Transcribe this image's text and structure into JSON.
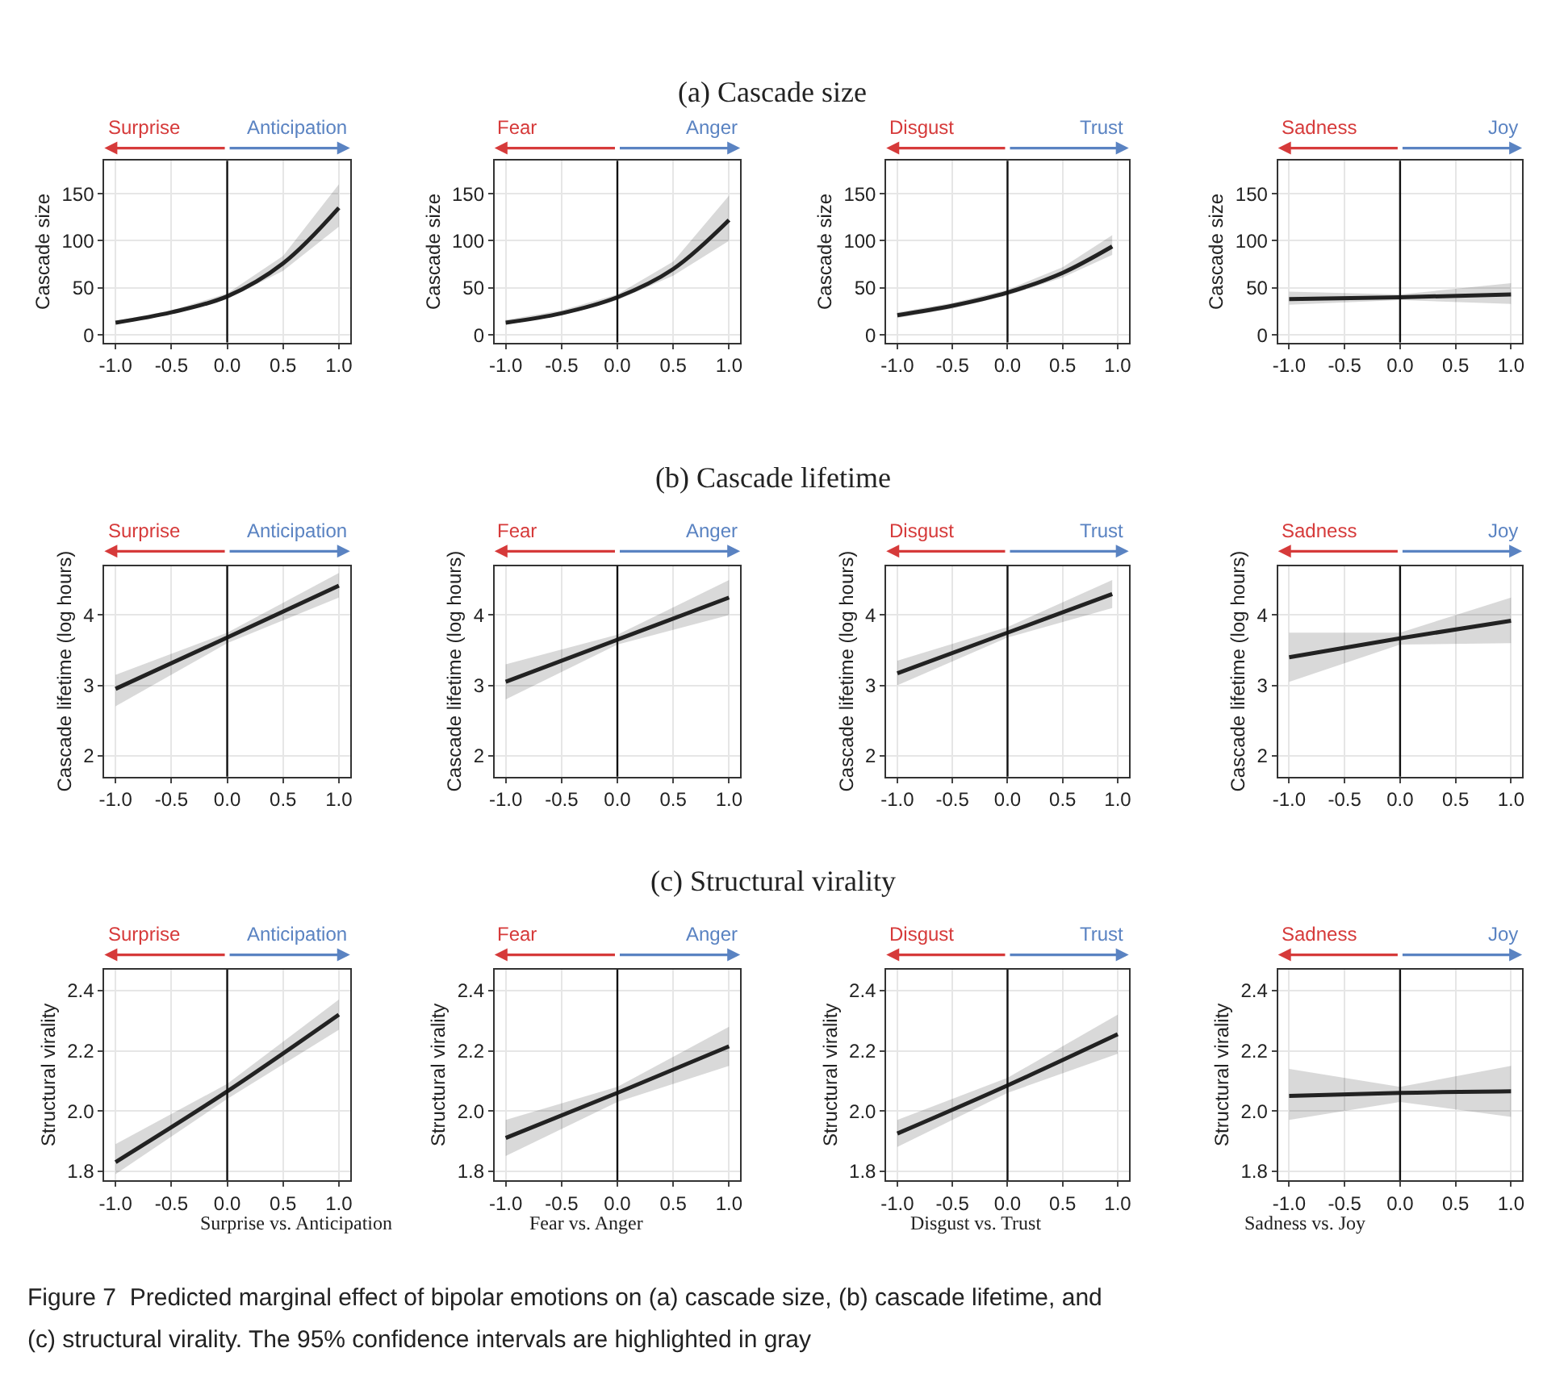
{
  "chart_data": [
    {
      "type": "other",
      "title": "(a) Cascade size"
    },
    {
      "type": "line",
      "ylabel": "Cascade size",
      "annotations": [
        "Surprise",
        "Anticipation"
      ],
      "x": [
        -1,
        -0.5,
        0,
        0.5,
        1
      ],
      "series": [
        {
          "color": "#222222",
          "values": [
            13,
            24,
            41,
            76,
            135
          ],
          "lower": [
            11,
            22,
            38,
            68,
            115
          ],
          "upper": [
            15,
            26,
            44,
            84,
            160
          ]
        }
      ],
      "xlim": [
        -1.1,
        1.1
      ],
      "ylim": [
        -8,
        185
      ],
      "xticks": [
        {
          "value": -1,
          "label": "-1.0"
        },
        {
          "value": -0.5,
          "label": "-0.5"
        },
        {
          "value": 0,
          "label": "0.0"
        },
        {
          "value": 0.5,
          "label": "0.5"
        },
        {
          "value": 1,
          "label": "1.0"
        }
      ],
      "yticks": [
        0,
        50,
        100,
        150
      ],
      "grid": true,
      "ref_lines": [
        {
          "axis": "x",
          "value": 0
        }
      ]
    },
    {
      "type": "line",
      "ylabel": "Cascade size",
      "annotations": [
        "Fear",
        "Anger"
      ],
      "x": [
        -1,
        -0.5,
        0,
        0.5,
        1
      ],
      "series": [
        {
          "color": "#222222",
          "values": [
            13,
            23,
            40,
            70,
            122
          ],
          "lower": [
            11,
            21,
            37,
            63,
            100
          ],
          "upper": [
            16,
            26,
            43,
            78,
            148
          ]
        }
      ],
      "xlim": [
        -1.1,
        1.1
      ],
      "ylim": [
        -8,
        185
      ],
      "xticks": [
        {
          "value": -1,
          "label": "-1.0"
        },
        {
          "value": -0.5,
          "label": "-0.5"
        },
        {
          "value": 0,
          "label": "0.0"
        },
        {
          "value": 0.5,
          "label": "0.5"
        },
        {
          "value": 1,
          "label": "1.0"
        }
      ],
      "yticks": [
        0,
        50,
        100,
        150
      ],
      "grid": true,
      "ref_lines": [
        {
          "axis": "x",
          "value": 0
        }
      ]
    },
    {
      "type": "line",
      "ylabel": "Cascade size",
      "annotations": [
        "Disgust",
        "Trust"
      ],
      "x": [
        -1,
        -0.5,
        0,
        0.5,
        0.95
      ],
      "series": [
        {
          "color": "#222222",
          "values": [
            21,
            31,
            45,
            66,
            94
          ],
          "lower": [
            18,
            28,
            42,
            61,
            85
          ],
          "upper": [
            24,
            34,
            48,
            72,
            106
          ]
        }
      ],
      "xlim": [
        -1.1,
        1.1
      ],
      "ylim": [
        -8,
        185
      ],
      "xticks": [
        {
          "value": -1,
          "label": "-1.0"
        },
        {
          "value": -0.5,
          "label": "-0.5"
        },
        {
          "value": 0,
          "label": "0.0"
        },
        {
          "value": 0.5,
          "label": "0.5"
        },
        {
          "value": 1,
          "label": "1.0"
        }
      ],
      "yticks": [
        0,
        50,
        100,
        150
      ],
      "grid": true,
      "ref_lines": [
        {
          "axis": "x",
          "value": 0
        }
      ]
    },
    {
      "type": "line",
      "ylabel": "Cascade size",
      "annotations": [
        "Sadness",
        "Joy"
      ],
      "x": [
        -1,
        0,
        1
      ],
      "series": [
        {
          "color": "#222222",
          "values": [
            38,
            40,
            43
          ],
          "lower": [
            32,
            37,
            33
          ],
          "upper": [
            46,
            43,
            55
          ]
        }
      ],
      "xlim": [
        -1.1,
        1.1
      ],
      "ylim": [
        -8,
        185
      ],
      "xticks": [
        {
          "value": -1,
          "label": "-1.0"
        },
        {
          "value": -0.5,
          "label": "-0.5"
        },
        {
          "value": 0,
          "label": "0.0"
        },
        {
          "value": 0.5,
          "label": "0.5"
        },
        {
          "value": 1,
          "label": "1.0"
        }
      ],
      "yticks": [
        0,
        50,
        100,
        150
      ],
      "grid": true,
      "ref_lines": [
        {
          "axis": "x",
          "value": 0
        }
      ]
    },
    {
      "type": "other",
      "title": "(b) Cascade lifetime"
    },
    {
      "type": "line",
      "ylabel": "Cascade lifetime (log hours)",
      "annotations": [
        "Surprise",
        "Anticipation"
      ],
      "x": [
        -1,
        0,
        1
      ],
      "series": [
        {
          "color": "#222222",
          "values": [
            2.95,
            3.68,
            4.42
          ],
          "lower": [
            2.7,
            3.6,
            4.25
          ],
          "upper": [
            3.15,
            3.75,
            4.6
          ]
        }
      ],
      "xlim": [
        -1.1,
        1.1
      ],
      "ylim": [
        1.7,
        4.7
      ],
      "xticks": [
        {
          "value": -1,
          "label": "-1.0"
        },
        {
          "value": -0.5,
          "label": "-0.5"
        },
        {
          "value": 0,
          "label": "0.0"
        },
        {
          "value": 0.5,
          "label": "0.5"
        },
        {
          "value": 1,
          "label": "1.0"
        }
      ],
      "yticks": [
        2,
        3,
        4
      ],
      "grid": true,
      "ref_lines": [
        {
          "axis": "x",
          "value": 0
        }
      ]
    },
    {
      "type": "line",
      "ylabel": "Cascade lifetime (log hours)",
      "annotations": [
        "Fear",
        "Anger"
      ],
      "x": [
        -1,
        0,
        1
      ],
      "series": [
        {
          "color": "#222222",
          "values": [
            3.05,
            3.65,
            4.25
          ],
          "lower": [
            2.8,
            3.58,
            4.0
          ],
          "upper": [
            3.3,
            3.72,
            4.5
          ]
        }
      ],
      "xlim": [
        -1.1,
        1.1
      ],
      "ylim": [
        1.7,
        4.7
      ],
      "xticks": [
        {
          "value": -1,
          "label": "-1.0"
        },
        {
          "value": -0.5,
          "label": "-0.5"
        },
        {
          "value": 0,
          "label": "0.0"
        },
        {
          "value": 0.5,
          "label": "0.5"
        },
        {
          "value": 1,
          "label": "1.0"
        }
      ],
      "yticks": [
        2,
        3,
        4
      ],
      "grid": true,
      "ref_lines": [
        {
          "axis": "x",
          "value": 0
        }
      ]
    },
    {
      "type": "line",
      "ylabel": "Cascade lifetime (log hours)",
      "annotations": [
        "Disgust",
        "Trust"
      ],
      "x": [
        -1,
        0,
        0.95
      ],
      "series": [
        {
          "color": "#222222",
          "values": [
            3.17,
            3.75,
            4.3
          ],
          "lower": [
            3.0,
            3.68,
            4.1
          ],
          "upper": [
            3.35,
            3.83,
            4.5
          ]
        }
      ],
      "xlim": [
        -1.1,
        1.1
      ],
      "ylim": [
        1.7,
        4.7
      ],
      "xticks": [
        {
          "value": -1,
          "label": "-1.0"
        },
        {
          "value": -0.5,
          "label": "-0.5"
        },
        {
          "value": 0,
          "label": "0.0"
        },
        {
          "value": 0.5,
          "label": "0.5"
        },
        {
          "value": 1,
          "label": "1.0"
        }
      ],
      "yticks": [
        2,
        3,
        4
      ],
      "grid": true,
      "ref_lines": [
        {
          "axis": "x",
          "value": 0
        }
      ]
    },
    {
      "type": "line",
      "ylabel": "Cascade lifetime (log hours)",
      "annotations": [
        "Sadness",
        "Joy"
      ],
      "x": [
        -1,
        0,
        1
      ],
      "series": [
        {
          "color": "#222222",
          "values": [
            3.4,
            3.67,
            3.92
          ],
          "lower": [
            3.05,
            3.58,
            3.6
          ],
          "upper": [
            3.75,
            3.75,
            4.25
          ]
        }
      ],
      "xlim": [
        -1.1,
        1.1
      ],
      "ylim": [
        1.7,
        4.7
      ],
      "xticks": [
        {
          "value": -1,
          "label": "-1.0"
        },
        {
          "value": -0.5,
          "label": "-0.5"
        },
        {
          "value": 0,
          "label": "0.0"
        },
        {
          "value": 0.5,
          "label": "0.5"
        },
        {
          "value": 1,
          "label": "1.0"
        }
      ],
      "yticks": [
        2,
        3,
        4
      ],
      "grid": true,
      "ref_lines": [
        {
          "axis": "x",
          "value": 0
        }
      ]
    },
    {
      "type": "other",
      "title": "(c) Structural virality"
    },
    {
      "type": "line",
      "ylabel": "Structural virality",
      "annotations": [
        "Surprise",
        "Anticipation",
        "Surprise vs. Anticipation"
      ],
      "x": [
        -1,
        0,
        1
      ],
      "series": [
        {
          "color": "#222222",
          "values": [
            1.83,
            2.065,
            2.32
          ],
          "lower": [
            1.79,
            2.04,
            2.27
          ],
          "upper": [
            1.89,
            2.09,
            2.37
          ]
        }
      ],
      "xlim": [
        -1.1,
        1.1
      ],
      "ylim": [
        1.77,
        2.47
      ],
      "xticks": [
        {
          "value": -1,
          "label": "-1.0"
        },
        {
          "value": -0.5,
          "label": "-0.5"
        },
        {
          "value": 0,
          "label": "0.0"
        },
        {
          "value": 0.5,
          "label": "0.5"
        },
        {
          "value": 1,
          "label": "1.0"
        }
      ],
      "yticks": [
        {
          "value": 1.8,
          "label": "1.8"
        },
        {
          "value": 2.0,
          "label": "2.0"
        },
        {
          "value": 2.2,
          "label": "2.2"
        },
        {
          "value": 2.4,
          "label": "2.4"
        }
      ],
      "grid": true,
      "ref_lines": [
        {
          "axis": "x",
          "value": 0
        }
      ]
    },
    {
      "type": "line",
      "ylabel": "Structural virality",
      "annotations": [
        "Fear",
        "Anger",
        "Fear vs. Anger"
      ],
      "x": [
        -1,
        0,
        1
      ],
      "series": [
        {
          "color": "#222222",
          "values": [
            1.91,
            2.06,
            2.215
          ],
          "lower": [
            1.85,
            2.03,
            2.15
          ],
          "upper": [
            1.97,
            2.08,
            2.28
          ]
        }
      ],
      "xlim": [
        -1.1,
        1.1
      ],
      "ylim": [
        1.77,
        2.47
      ],
      "xticks": [
        {
          "value": -1,
          "label": "-1.0"
        },
        {
          "value": -0.5,
          "label": "-0.5"
        },
        {
          "value": 0,
          "label": "0.0"
        },
        {
          "value": 0.5,
          "label": "0.5"
        },
        {
          "value": 1,
          "label": "1.0"
        }
      ],
      "yticks": [
        {
          "value": 1.8,
          "label": "1.8"
        },
        {
          "value": 2.0,
          "label": "2.0"
        },
        {
          "value": 2.2,
          "label": "2.2"
        },
        {
          "value": 2.4,
          "label": "2.4"
        }
      ],
      "grid": true,
      "ref_lines": [
        {
          "axis": "x",
          "value": 0
        }
      ]
    },
    {
      "type": "line",
      "ylabel": "Structural virality",
      "annotations": [
        "Disgust",
        "Trust",
        "Disgust vs. Trust"
      ],
      "x": [
        -1,
        0,
        1
      ],
      "series": [
        {
          "color": "#222222",
          "values": [
            1.925,
            2.085,
            2.255
          ],
          "lower": [
            1.88,
            2.06,
            2.19
          ],
          "upper": [
            1.97,
            2.11,
            2.32
          ]
        }
      ],
      "xlim": [
        -1.1,
        1.1
      ],
      "ylim": [
        1.77,
        2.47
      ],
      "xticks": [
        {
          "value": -1,
          "label": "-1.0"
        },
        {
          "value": -0.5,
          "label": "-0.5"
        },
        {
          "value": 0,
          "label": "0.0"
        },
        {
          "value": 0.5,
          "label": "0.5"
        },
        {
          "value": 1,
          "label": "1.0"
        }
      ],
      "yticks": [
        {
          "value": 1.8,
          "label": "1.8"
        },
        {
          "value": 2.0,
          "label": "2.0"
        },
        {
          "value": 2.2,
          "label": "2.2"
        },
        {
          "value": 2.4,
          "label": "2.4"
        }
      ],
      "grid": true,
      "ref_lines": [
        {
          "axis": "x",
          "value": 0
        }
      ]
    },
    {
      "type": "line",
      "ylabel": "Structural virality",
      "annotations": [
        "Sadness",
        "Joy",
        "Sadness vs. Joy"
      ],
      "x": [
        -1,
        0,
        1
      ],
      "series": [
        {
          "color": "#222222",
          "values": [
            2.05,
            2.06,
            2.065
          ],
          "lower": [
            1.97,
            2.03,
            1.98
          ],
          "upper": [
            2.14,
            2.08,
            2.15
          ]
        }
      ],
      "xlim": [
        -1.1,
        1.1
      ],
      "ylim": [
        1.77,
        2.47
      ],
      "xticks": [
        {
          "value": -1,
          "label": "-1.0"
        },
        {
          "value": -0.5,
          "label": "-0.5"
        },
        {
          "value": 0,
          "label": "0.0"
        },
        {
          "value": 0.5,
          "label": "0.5"
        },
        {
          "value": 1,
          "label": "1.0"
        }
      ],
      "yticks": [
        {
          "value": 1.8,
          "label": "1.8"
        },
        {
          "value": 2.0,
          "label": "2.0"
        },
        {
          "value": 2.2,
          "label": "2.2"
        },
        {
          "value": 2.4,
          "label": "2.4"
        }
      ],
      "grid": true,
      "ref_lines": [
        {
          "axis": "x",
          "value": 0
        }
      ]
    },
    {
      "type": "other",
      "annotations": [
        "Figure 7  Predicted marginal effect of bipolar emotions on (a) cascade size, (b) cascade lifetime, and",
        "(c) structural virality. The 95% confidence intervals are highlighted in gray"
      ]
    }
  ]
}
